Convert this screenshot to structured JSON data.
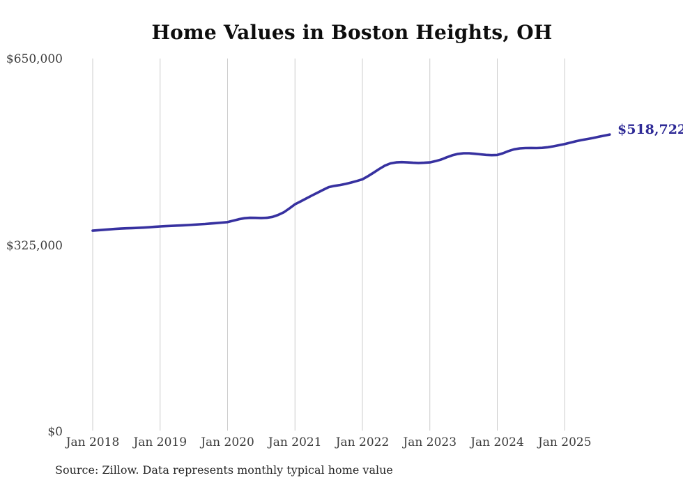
{
  "title": "Home Values in Boston Heights, OH",
  "source_note": "Source: Zillow. Data represents monthly typical home value",
  "colors": {
    "line": "#3731a0",
    "end_label_text": "#2e2a96",
    "grid": "#cccccc",
    "title_text": "#0d0d0d",
    "axis_text": "#3c3c3c",
    "source_text": "#262626",
    "background": "#ffffff"
  },
  "chart_data": {
    "type": "line",
    "title": "Home Values in Boston Heights, OH",
    "xlabel": "",
    "ylabel": "",
    "grid": "vertical-only",
    "legend": false,
    "ylim": [
      0,
      650000
    ],
    "y_ticks": [
      {
        "label": "$0",
        "value": 0
      },
      {
        "label": "$325,000",
        "value": 325000
      },
      {
        "label": "$650,000",
        "value": 650000
      }
    ],
    "x_tick_labels": [
      "Jan 2018",
      "Jan 2019",
      "Jan 2020",
      "Jan 2021",
      "Jan 2022",
      "Jan 2023",
      "Jan 2024",
      "Jan 2025"
    ],
    "x_start_month": "2018-01",
    "x_end_month": "2025-09",
    "months_per_year": 12,
    "end_label": "$518,722",
    "final_value": 518722,
    "series": [
      {
        "name": "Typical home value",
        "values": [
          351000,
          351800,
          352600,
          353300,
          354000,
          354600,
          355100,
          355500,
          355900,
          356400,
          357000,
          357700,
          358400,
          358900,
          359400,
          359900,
          360400,
          360900,
          361400,
          362000,
          362700,
          363500,
          364300,
          365100,
          366000,
          368400,
          370900,
          372700,
          373500,
          373300,
          373100,
          373500,
          375100,
          378400,
          383000,
          389700,
          397000,
          402000,
          407100,
          412200,
          417200,
          422200,
          426900,
          429100,
          430600,
          432500,
          434900,
          437600,
          440500,
          446100,
          452200,
          458600,
          464500,
          468400,
          470100,
          470500,
          470100,
          469500,
          469100,
          469400,
          470100,
          472200,
          475100,
          478900,
          482400,
          484900,
          486000,
          486000,
          485100,
          484100,
          483200,
          482700,
          483100,
          486000,
          489900,
          492900,
          494500,
          495100,
          495200,
          495100,
          495500,
          496600,
          498100,
          500100,
          502100,
          504600,
          507000,
          509100,
          510800,
          512600,
          514600,
          516700,
          518722
        ]
      }
    ]
  }
}
